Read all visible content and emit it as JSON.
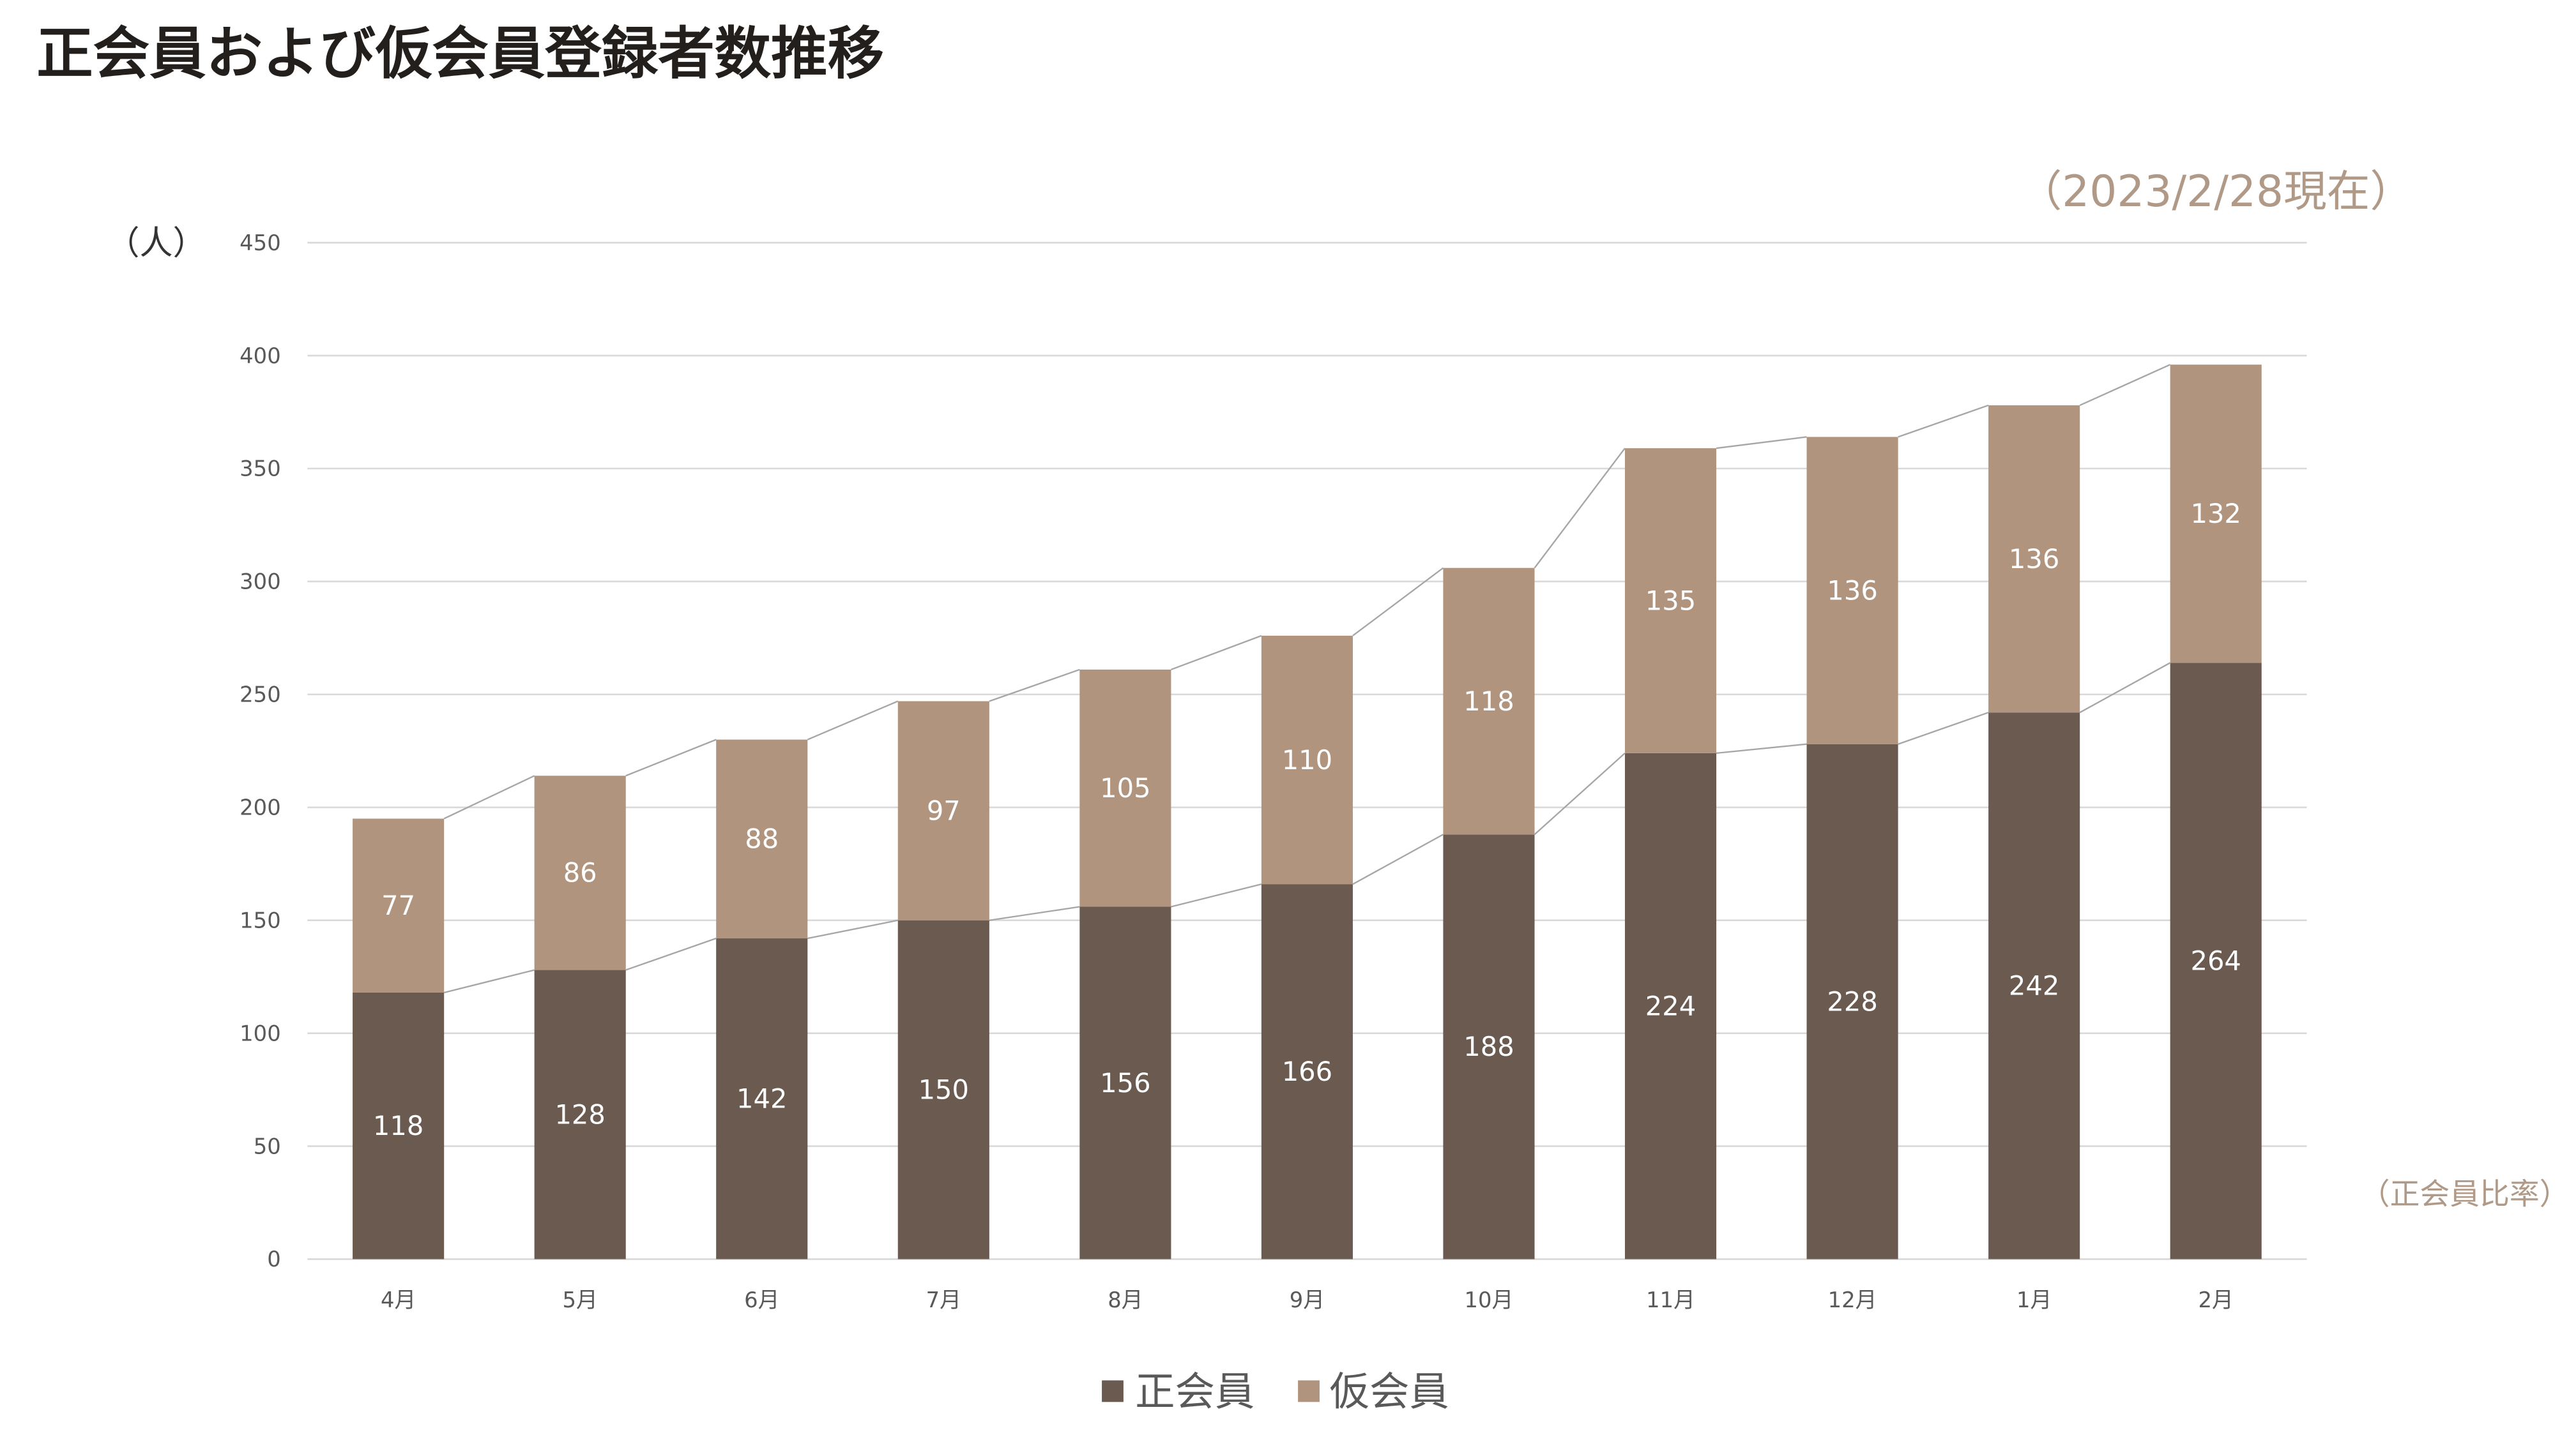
{
  "colors": {
    "title": "#231f1c",
    "annotation": "#b09a87",
    "unit_text": "#333333",
    "axis_text": "#595959",
    "gridline": "#d9d9d9",
    "series_line": "#a6a6a6",
    "value_label": "#ffffff",
    "legend_text": "#595959"
  },
  "chart_data": {
    "type": "bar",
    "stacked": true,
    "title": "正会員および仮会員登録者数推移",
    "ylabel": "（人）",
    "annotations": {
      "as_of": "（2023/2/28現在）",
      "ratio": "（正会員比率）"
    },
    "categories": [
      "4月",
      "5月",
      "6月",
      "7月",
      "8月",
      "9月",
      "10月",
      "11月",
      "12月",
      "1月",
      "2月"
    ],
    "series": [
      {
        "name": "正会員",
        "color": "#6b5a50",
        "values": [
          118,
          128,
          142,
          150,
          156,
          166,
          188,
          224,
          228,
          242,
          264
        ]
      },
      {
        "name": "仮会員",
        "color": "#b1947e",
        "values": [
          77,
          86,
          88,
          97,
          105,
          110,
          118,
          135,
          136,
          136,
          132
        ]
      }
    ],
    "ylim": [
      0,
      450
    ],
    "yticks": [
      0,
      50,
      100,
      150,
      200,
      250,
      300,
      350,
      400,
      450
    ],
    "grid": true,
    "data_labels": true,
    "series_lines": true,
    "legend": "bottom-center"
  }
}
